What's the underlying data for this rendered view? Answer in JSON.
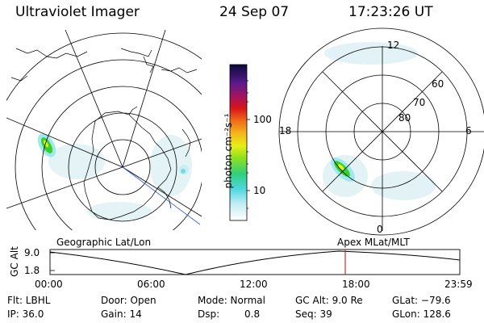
{
  "header": {
    "instrument": "Ultraviolet Imager",
    "date": "24 Sep 07",
    "time": "17:23:26 UT"
  },
  "colorbar": {
    "unit_label": "photon cm⁻²s⁻¹",
    "ticks": [
      "100",
      "10"
    ]
  },
  "geo_panel": {
    "label": "Geographic Lat/Lon"
  },
  "mlt_panel": {
    "label": "Apex MLat/MLT",
    "hour_labels": {
      "top": "12",
      "left": "18",
      "right": "6",
      "bottom": "0"
    },
    "lat_labels": [
      "60",
      "70",
      "80"
    ]
  },
  "altitude_plot": {
    "ylabel": "GC Alt",
    "yticks": [
      "9.0",
      "1.8"
    ],
    "xticks": [
      "00:00",
      "06:00",
      "12:00",
      "18:00",
      "23:59"
    ],
    "marker_time": "17:23:26"
  },
  "info": {
    "flt": "Flt: LBHL",
    "door": "Door: Open",
    "mode": "Mode: Normal",
    "gcalt": "GC Alt: 9.0 Re",
    "glat": "GLat: −79.6",
    "ip": "IP: 36.0",
    "gain": "Gain: 14",
    "dsp_label": "Dsp:",
    "dsp_value": "0.8",
    "seq": "Seq: 39",
    "glon": "GLon: 128.6"
  },
  "colors": {
    "marker": "#c83232",
    "aurora_bright": "#36d126",
    "aurora_yellow": "#f0e020",
    "aurora_cyan": "#9fe8f0",
    "pole_line": "#2a5bd6"
  }
}
